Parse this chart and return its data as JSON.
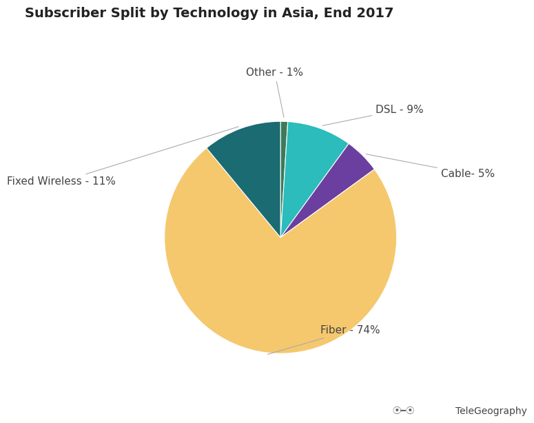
{
  "title": "Subscriber Split by Technology in Asia, End 2017",
  "slices": [
    {
      "label": "Other - 1%",
      "value": 1,
      "color": "#3D7A5A"
    },
    {
      "label": "DSL - 9%",
      "value": 9,
      "color": "#2BBCBB"
    },
    {
      "label": "Cable- 5%",
      "value": 5,
      "color": "#6B3FA0"
    },
    {
      "label": "Fiber - 74%",
      "value": 74,
      "color": "#F5C86E"
    },
    {
      "label": "Fixed Wireless - 11%",
      "value": 11,
      "color": "#1B6B72"
    }
  ],
  "startangle": 90,
  "title_fontsize": 14,
  "label_fontsize": 11,
  "watermark": "TeleGeography",
  "background_color": "#ffffff"
}
